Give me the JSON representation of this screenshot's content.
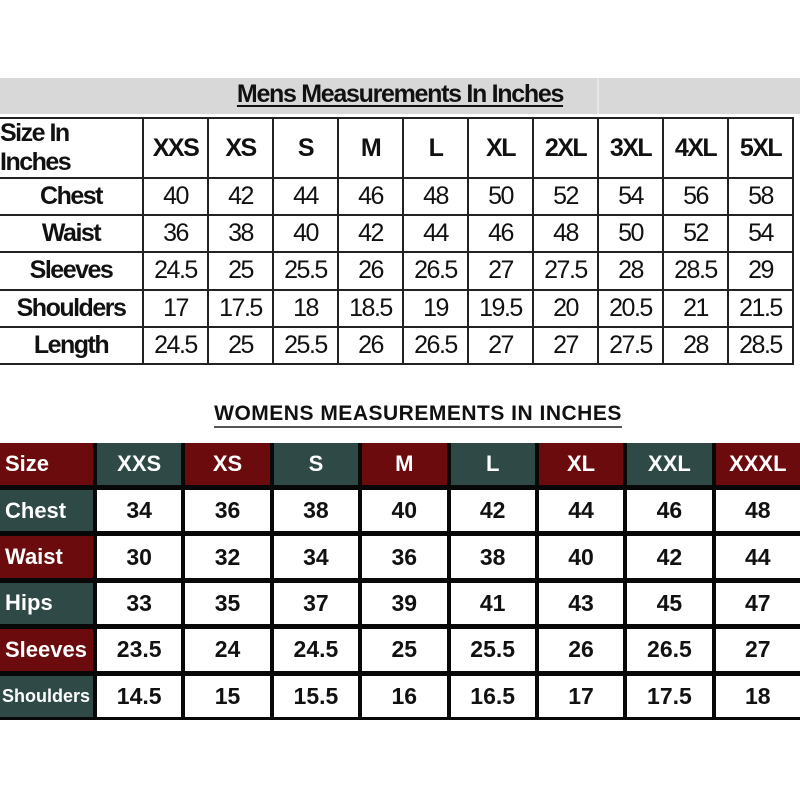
{
  "mens": {
    "title": "Mens Measurements In Inches",
    "header_label": "Size In Inches",
    "sizes": [
      "XXS",
      "XS",
      "S",
      "M",
      "L",
      "XL",
      "2XL",
      "3XL",
      "4XL",
      "5XL"
    ],
    "rows": [
      {
        "label": "Chest",
        "values": [
          "40",
          "42",
          "44",
          "46",
          "48",
          "50",
          "52",
          "54",
          "56",
          "58"
        ]
      },
      {
        "label": "Waist",
        "values": [
          "36",
          "38",
          "40",
          "42",
          "44",
          "46",
          "48",
          "50",
          "52",
          "54"
        ]
      },
      {
        "label": "Sleeves",
        "values": [
          "24.5",
          "25",
          "25.5",
          "26",
          "26.5",
          "27",
          "27.5",
          "28",
          "28.5",
          "29"
        ]
      },
      {
        "label": "Shoulders",
        "values": [
          "17",
          "17.5",
          "18",
          "18.5",
          "19",
          "19.5",
          "20",
          "20.5",
          "21",
          "21.5"
        ]
      },
      {
        "label": "Length",
        "values": [
          "24.5",
          "25",
          "25.5",
          "26",
          "26.5",
          "27",
          "27",
          "27.5",
          "28",
          "28.5"
        ]
      }
    ]
  },
  "womens": {
    "title": "WOMENS MEASUREMENTS IN INCHES",
    "header_label": "Size",
    "sizes": [
      "XXS",
      "XS",
      "S",
      "M",
      "L",
      "XL",
      "XXL",
      "XXXL"
    ],
    "rows": [
      {
        "label": "Chest",
        "values": [
          "34",
          "36",
          "38",
          "40",
          "42",
          "44",
          "46",
          "48"
        ]
      },
      {
        "label": "Waist",
        "values": [
          "30",
          "32",
          "34",
          "36",
          "38",
          "40",
          "42",
          "44"
        ]
      },
      {
        "label": "Hips",
        "values": [
          "33",
          "35",
          "37",
          "39",
          "41",
          "43",
          "45",
          "47"
        ]
      },
      {
        "label": "Sleeves",
        "values": [
          "23.5",
          "24",
          "24.5",
          "25",
          "25.5",
          "26",
          "26.5",
          "27"
        ]
      },
      {
        "label": "Shoulders",
        "values": [
          "14.5",
          "15",
          "15.5",
          "16",
          "16.5",
          "17",
          "17.5",
          "18"
        ]
      }
    ],
    "colors": {
      "red": "#6b0b0e",
      "green": "#2f4a46"
    }
  }
}
